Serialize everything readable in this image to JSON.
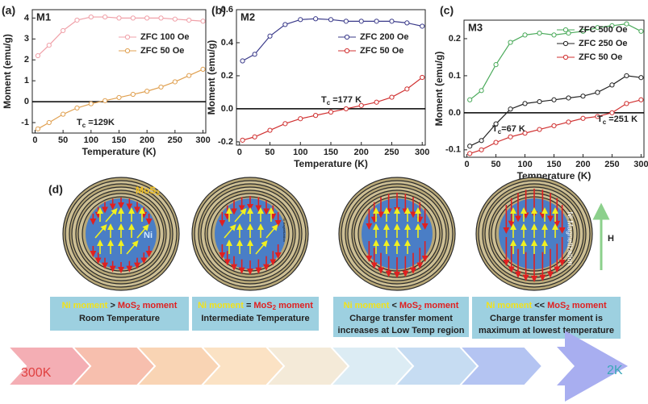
{
  "chart_data": [
    {
      "type": "line",
      "panel": "(a)",
      "title": "M1",
      "x_label": "Temperature (K)",
      "y_label": "Moment (emu/g)",
      "xlim": [
        -5,
        305
      ],
      "xticks": [
        0,
        50,
        100,
        150,
        200,
        250,
        300
      ],
      "ylim": [
        -1.5,
        4.4
      ],
      "yticks": [
        -1,
        0,
        1,
        2,
        3,
        4
      ],
      "zero_line": true,
      "legend_position": "upper right",
      "x": [
        5,
        25,
        50,
        75,
        100,
        125,
        150,
        175,
        200,
        225,
        250,
        275,
        300
      ],
      "series": [
        {
          "name": "ZFC 100 Oe",
          "color": "#f0a0a8",
          "values": [
            2.2,
            2.7,
            3.4,
            3.9,
            4.05,
            4.05,
            4.0,
            4.0,
            4.0,
            4.0,
            3.95,
            3.9,
            3.85
          ]
        },
        {
          "name": "ZFC 50 Oe",
          "color": "#e0a050",
          "values": [
            -1.3,
            -1.0,
            -0.6,
            -0.3,
            -0.1,
            0.05,
            0.2,
            0.35,
            0.5,
            0.7,
            0.95,
            1.25,
            1.55
          ]
        }
      ],
      "annotations": [
        {
          "text": "T",
          "sub": "c",
          "rest": " =129K"
        }
      ]
    },
    {
      "type": "line",
      "panel": "(b)",
      "title": "M2",
      "x_label": "Temperature (K)",
      "y_label": "Moment (emu/g)",
      "xlim": [
        -5,
        305
      ],
      "xticks": [
        0,
        50,
        100,
        150,
        200,
        250,
        300
      ],
      "ylim": [
        -0.22,
        0.6
      ],
      "yticks": [
        -0.2,
        {
          "value": 0,
          "label": "0.0"
        },
        0.2,
        0.4,
        0.6
      ],
      "zero_line": true,
      "legend_position": "upper right",
      "x": [
        5,
        25,
        50,
        75,
        100,
        125,
        150,
        175,
        200,
        225,
        250,
        275,
        300
      ],
      "series": [
        {
          "name": "ZFC 200 Oe",
          "color": "#3a3a8a",
          "values": [
            0.29,
            0.33,
            0.44,
            0.51,
            0.54,
            0.545,
            0.54,
            0.53,
            0.53,
            0.53,
            0.53,
            0.52,
            0.5
          ]
        },
        {
          "name": "ZFC 50 Oe",
          "color": "#d03030",
          "values": [
            -0.19,
            -0.17,
            -0.13,
            -0.09,
            -0.06,
            -0.04,
            -0.02,
            0.0,
            0.02,
            0.04,
            0.07,
            0.12,
            0.19
          ]
        }
      ],
      "annotations": [
        {
          "text": "T",
          "sub": "c",
          "rest": " =177 K"
        }
      ]
    },
    {
      "type": "line",
      "panel": "(c)",
      "title": "M3",
      "x_label": "Temperature (K)",
      "y_label": "Moment (emu/g)",
      "xlim": [
        -5,
        305
      ],
      "xticks": [
        0,
        50,
        100,
        150,
        200,
        250,
        300
      ],
      "ylim": [
        -0.12,
        0.25
      ],
      "yticks": [
        -0.1,
        {
          "value": 0,
          "label": "0.0"
        },
        0.1,
        0.2
      ],
      "zero_line": true,
      "legend_position": "upper right",
      "x": [
        5,
        25,
        50,
        75,
        100,
        125,
        150,
        175,
        200,
        225,
        250,
        275,
        300
      ],
      "series": [
        {
          "name": "ZFC 500 Oe",
          "color": "#4aaa5a",
          "values": [
            0.035,
            0.06,
            0.13,
            0.19,
            0.21,
            0.215,
            0.21,
            0.215,
            0.22,
            0.23,
            0.235,
            0.24,
            0.22
          ]
        },
        {
          "name": "ZFC 250 Oe",
          "color": "#222222",
          "values": [
            -0.09,
            -0.075,
            -0.03,
            0.01,
            0.025,
            0.03,
            0.035,
            0.04,
            0.045,
            0.055,
            0.075,
            0.1,
            0.095
          ]
        },
        {
          "name": "ZFC 50 Oe",
          "color": "#d03030",
          "values": [
            -0.11,
            -0.1,
            -0.08,
            -0.065,
            -0.055,
            -0.045,
            -0.035,
            -0.025,
            -0.015,
            -0.01,
            0.0,
            0.025,
            0.035
          ]
        }
      ],
      "annotations": [
        {
          "text": "T",
          "sub": "c",
          "rest": "=67 K"
        },
        {
          "text": "T",
          "sub": "c",
          "rest": " =251 K"
        }
      ]
    }
  ],
  "diagram": {
    "panel": "(d)",
    "labels": {
      "mos": "MoS",
      "mos_sub": "2",
      "ni": "Ni",
      "ni_magnetization": "Ni Magnetization",
      "field": "H"
    },
    "boxes": [
      {
        "left": "Ni moment",
        "relation": ">",
        "right": "MoS",
        "right_sub": "2",
        "right_end": " moment",
        "caption": [
          "Room Temperature"
        ]
      },
      {
        "left": "Ni moment",
        "relation": "=",
        "right": "MoS",
        "right_sub": "2",
        "right_end": " moment",
        "caption": [
          "Intermediate Temperature"
        ]
      },
      {
        "left": "Ni moment",
        "relation": "<",
        "right": "MoS",
        "right_sub": "2",
        "right_end": " moment",
        "caption": [
          "Charge transfer moment",
          "increases at Low Temp region"
        ]
      },
      {
        "left": "Ni moment",
        "relation": "<<",
        "right": "MoS",
        "right_sub": "2",
        "right_end": " moment",
        "caption": [
          "Charge transfer moment is",
          "maximum at lowest temperature"
        ]
      }
    ],
    "arrow": {
      "start": "300K",
      "end": "2K"
    }
  }
}
